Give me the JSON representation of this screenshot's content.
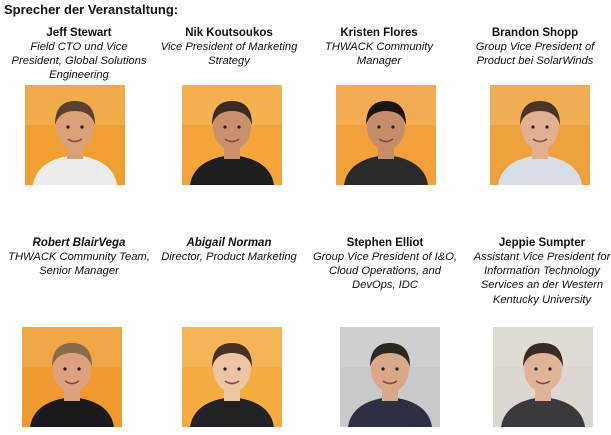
{
  "heading": "Sprecher der Veranstaltung:",
  "speakers": [
    {
      "name": "Jeff Stewart",
      "title": "Field CTO und Vice President, Global Solutions Engineering",
      "bg": "#f0a030",
      "skin": "#d9a07a",
      "hair": "#5a4030",
      "shirt": "#ececec"
    },
    {
      "name": "Nik Koutsoukos",
      "title": "Vice President of Marketing Strategy",
      "bg": "#f3a53a",
      "skin": "#c99070",
      "hair": "#3a2a20",
      "shirt": "#1e1e22"
    },
    {
      "name": "Kristen Flores",
      "title": "THWACK Community Manager",
      "bg": "#f2a13a",
      "skin": "#c58d68",
      "hair": "#1c1410",
      "shirt": "#2a2a2a"
    },
    {
      "name": "Brandon Shopp",
      "title": "Group Vice President of Product bei SolarWinds",
      "bg": "#eea23e",
      "skin": "#e0b090",
      "hair": "#4a3626",
      "shirt": "#d8dde6"
    },
    {
      "name": "Robert BlairVega",
      "title": "THWACK Community Team, Senior Manager",
      "bg": "#ee9a2e",
      "skin": "#dba080",
      "hair": "#8a6a48",
      "shirt": "#1a1a1e"
    },
    {
      "name": "Abigail Norman",
      "title": "Director, Product Marketing",
      "bg": "#f5ac40",
      "skin": "#edc5a5",
      "hair": "#4a3022",
      "shirt": "#222226"
    },
    {
      "name": "Stephen Elliot",
      "title": "Group Vice President of I&O, Cloud Operations, and DevOps, IDC",
      "bg": "#c9c9c9",
      "skin": "#d8a888",
      "hair": "#2c2620",
      "shirt": "#2c3040"
    },
    {
      "name": "Jeppie Sumpter",
      "title": "Assistant Vice President for Information Technology Services an der Western Kentucky University",
      "bg": "#dcd7d0",
      "skin": "#e0b498",
      "hair": "#3a2c22",
      "shirt": "#3a3a3e"
    }
  ]
}
